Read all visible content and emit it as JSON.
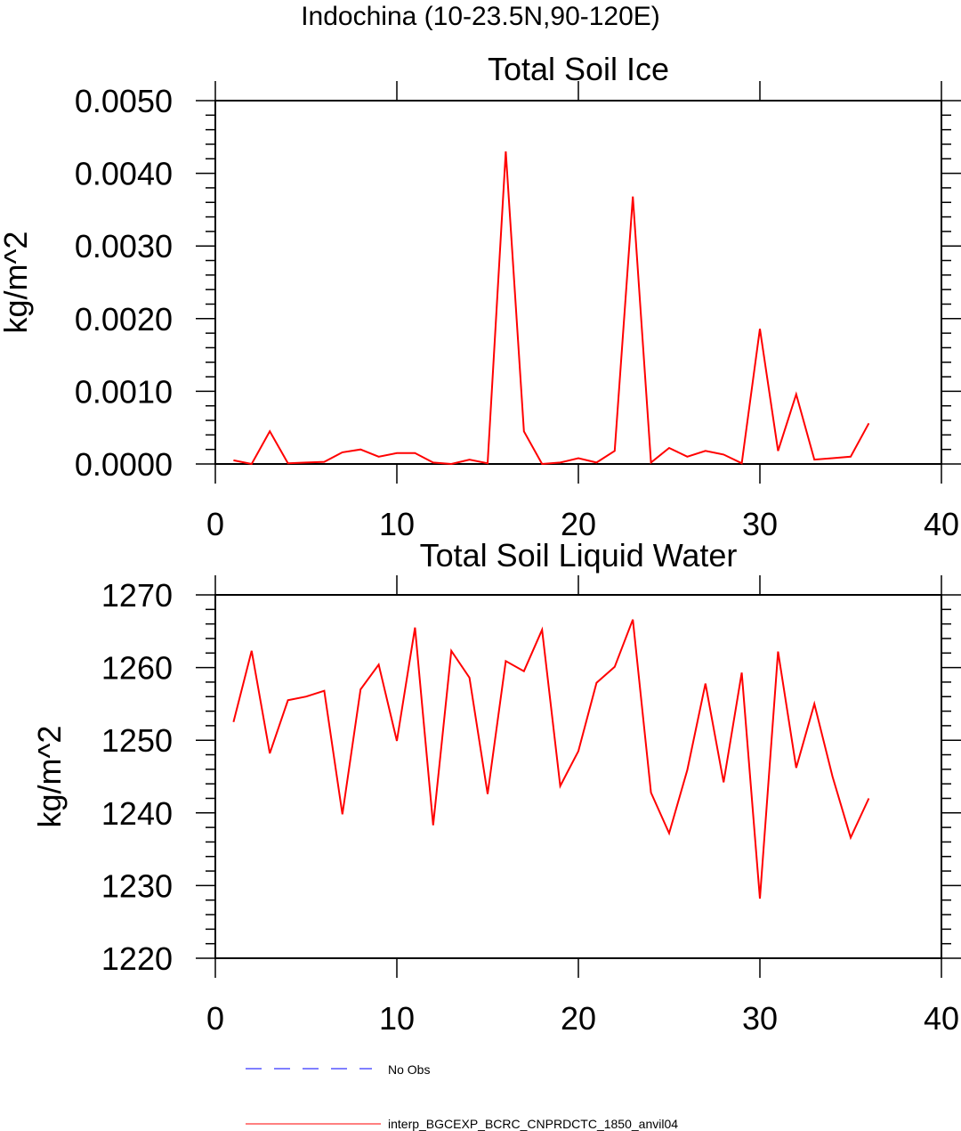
{
  "header": {
    "title": "Indochina (10-23.5N,90-120E)"
  },
  "colors": {
    "series": "#ff0000",
    "obs": "#0000ff",
    "axis": "#000000"
  },
  "legend": {
    "items": [
      {
        "label": "No Obs",
        "color": "#0000ff",
        "style": "dashed"
      },
      {
        "label": "interp_BGCEXP_BCRC_CNPRDCTC_1850_anvil04",
        "color": "#ff0000",
        "style": "solid"
      }
    ]
  },
  "chart_data": [
    {
      "type": "line",
      "title": "Total Soil Ice",
      "xlabel": "",
      "ylabel": "kg/m^2",
      "xlim": [
        0,
        40
      ],
      "ylim": [
        0,
        0.005
      ],
      "xticks": [
        0,
        10,
        20,
        30,
        40
      ],
      "xtick_labels": [
        "0",
        "10",
        "20",
        "30",
        "40"
      ],
      "yticks": [
        0,
        0.001,
        0.002,
        0.003,
        0.004,
        0.005
      ],
      "ytick_labels": [
        "0.0000",
        "0.0010",
        "0.0020",
        "0.0030",
        "0.0040",
        "0.0050"
      ],
      "grid": false,
      "series": [
        {
          "color": "#ff0000",
          "x": [
            1,
            2,
            3,
            4,
            5,
            6,
            7,
            8,
            9,
            10,
            11,
            12,
            13,
            14,
            15,
            16,
            17,
            18,
            19,
            20,
            21,
            22,
            23,
            24,
            25,
            26,
            27,
            28,
            29,
            30,
            31,
            32,
            33,
            34,
            35,
            36
          ],
          "y": [
            5e-05,
            0.0,
            0.00045,
            1e-05,
            2e-05,
            3e-05,
            0.00016,
            0.0002,
            0.0001,
            0.00015,
            0.00015,
            2e-05,
            0.0,
            6e-05,
            1e-05,
            0.0043,
            0.00045,
            0.0,
            2e-05,
            8e-05,
            2e-05,
            0.00018,
            0.00368,
            2e-05,
            0.00022,
            0.0001,
            0.00018,
            0.00013,
            1e-05,
            0.00186,
            0.00018,
            0.00096,
            6e-05,
            8e-05,
            0.0001,
            0.00056
          ]
        }
      ]
    },
    {
      "type": "line",
      "title": "Total Soil Liquid Water",
      "xlabel": "",
      "ylabel": "kg/m^2",
      "xlim": [
        0,
        40
      ],
      "ylim": [
        1220,
        1270
      ],
      "xticks": [
        0,
        10,
        20,
        30,
        40
      ],
      "xtick_labels": [
        "0",
        "10",
        "20",
        "30",
        "40"
      ],
      "yticks": [
        1220,
        1230,
        1240,
        1250,
        1260,
        1270
      ],
      "ytick_labels": [
        "1220",
        "1230",
        "1240",
        "1250",
        "1260",
        "1270"
      ],
      "grid": false,
      "series": [
        {
          "color": "#ff0000",
          "x": [
            1,
            2,
            3,
            4,
            5,
            6,
            7,
            8,
            9,
            10,
            11,
            12,
            13,
            14,
            15,
            16,
            17,
            18,
            19,
            20,
            21,
            22,
            23,
            24,
            25,
            26,
            27,
            28,
            29,
            30,
            31,
            32,
            33,
            34,
            35,
            36
          ],
          "y": [
            1252.5,
            1262.3,
            1248.2,
            1255.5,
            1256.0,
            1256.8,
            1239.8,
            1257.0,
            1260.4,
            1249.9,
            1265.5,
            1238.3,
            1262.3,
            1258.6,
            1242.6,
            1260.9,
            1259.5,
            1265.2,
            1243.7,
            1248.5,
            1257.9,
            1260.1,
            1266.6,
            1242.8,
            1237.2,
            1245.9,
            1257.8,
            1244.2,
            1259.3,
            1228.2,
            1262.2,
            1246.2,
            1255.0,
            1245.0,
            1236.6,
            1242.0
          ]
        }
      ]
    }
  ]
}
